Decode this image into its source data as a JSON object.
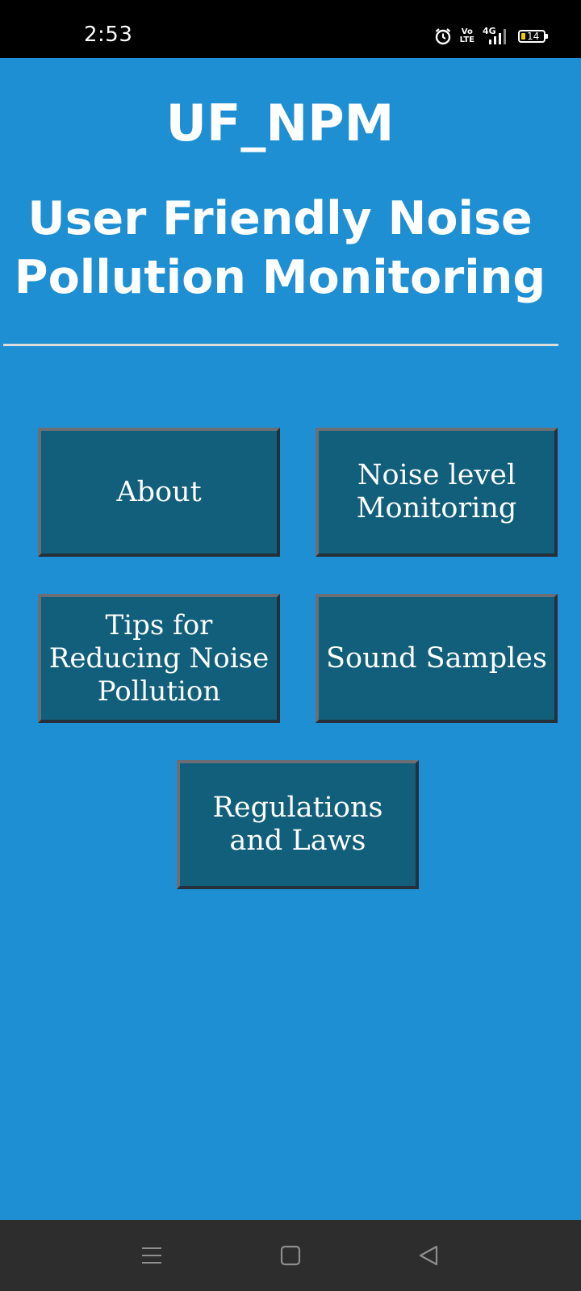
{
  "status_bar": {
    "time": "2:53",
    "network": "4G",
    "volte_line1": "Vo",
    "volte_line2": "LTE",
    "battery": "14",
    "icons": [
      "alarm-icon",
      "volte-icon",
      "signal-4g-icon",
      "battery-icon"
    ]
  },
  "header": {
    "title": "UF_NPM",
    "subtitle_line1": "User Friendly Noise",
    "subtitle_line2": "Pollution Monitoring"
  },
  "menu": {
    "about": "About",
    "noise_level_line1": "Noise level",
    "noise_level_line2": "Monitoring",
    "tips_line1": "Tips for",
    "tips_line2": "Reducing Noise",
    "tips_line3": "Pollution",
    "sound_samples": "Sound Samples",
    "regulations_line1": "Regulations",
    "regulations_line2": "and Laws"
  },
  "nav_bar": {
    "icons": [
      "menu-icon",
      "home-icon",
      "back-icon"
    ]
  },
  "colors": {
    "background": "#1e8fd3",
    "tile": "#115f7b",
    "status_bar": "#000000",
    "nav_bar": "#2d2d2d",
    "battery_fill": "#f5d000"
  }
}
